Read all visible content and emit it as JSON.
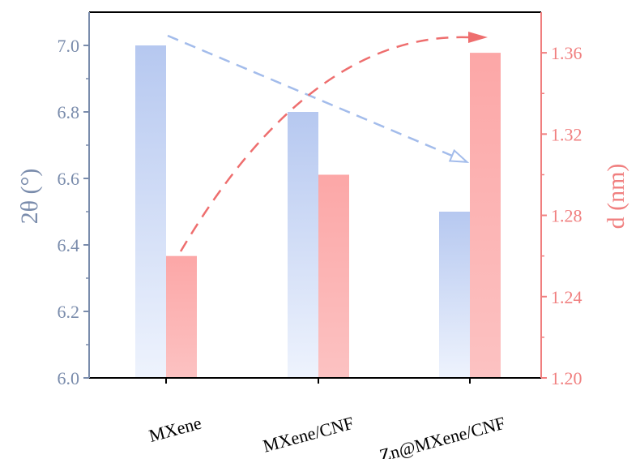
{
  "colors": {
    "left_axis": "#7A8CAC",
    "right_axis": "#F07F7F",
    "bar_blue_top": "#B6C8F0",
    "bar_blue_bottom": "#EEF3FD",
    "bar_red_top": "#FCA7A7",
    "bar_red_bottom": "#FCC2C2",
    "arrow_blue": "#A3BCEB",
    "arrow_red": "#EE6E6E"
  },
  "chart_data": {
    "type": "bar",
    "categories": [
      "MXene",
      "MXene/CNF",
      "Zn@MXene/CNF"
    ],
    "series": [
      {
        "axis": "left",
        "values": [
          7.0,
          6.8,
          6.5
        ]
      },
      {
        "axis": "right",
        "values": [
          1.26,
          1.3,
          1.36
        ]
      }
    ],
    "y_left": {
      "label": "2θ (°)",
      "range": [
        6.0,
        7.1
      ],
      "ticks": [
        "6.0",
        "6.2",
        "6.4",
        "6.6",
        "6.8",
        "7.0"
      ],
      "tick_values": [
        6.0,
        6.2,
        6.4,
        6.6,
        6.8,
        7.0
      ]
    },
    "y_right": {
      "label": "d (nm)",
      "range": [
        1.2,
        1.38
      ],
      "ticks": [
        "1.20",
        "1.24",
        "1.28",
        "1.32",
        "1.36"
      ],
      "tick_values": [
        1.2,
        1.24,
        1.28,
        1.32,
        1.36
      ]
    },
    "trend_arrows": [
      {
        "series": "left",
        "direction": "decreasing"
      },
      {
        "series": "right",
        "direction": "increasing"
      }
    ],
    "grid": false,
    "legend": "none"
  }
}
